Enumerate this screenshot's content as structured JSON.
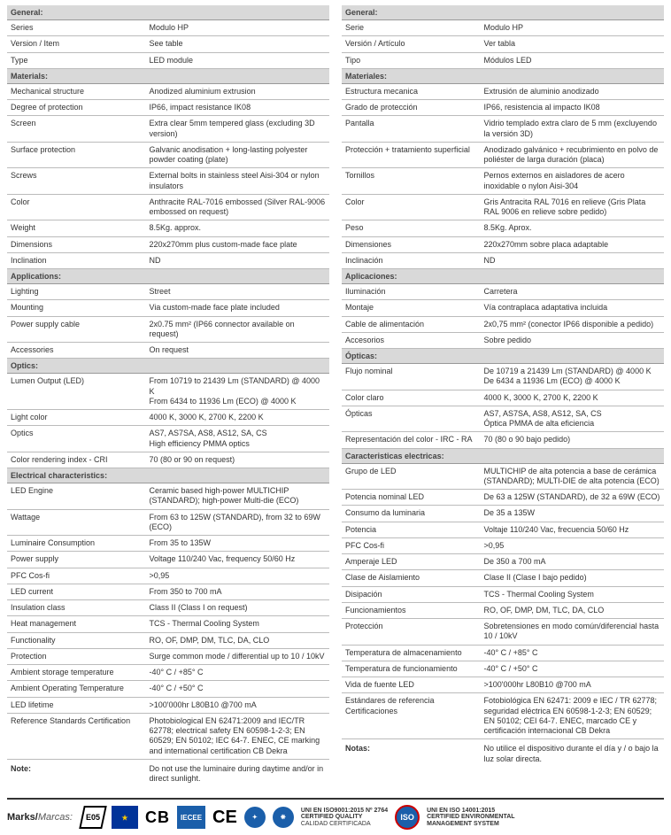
{
  "left": {
    "sections": [
      {
        "title": "General:",
        "rows": [
          {
            "label": "Series",
            "value": "Modulo HP"
          },
          {
            "label": "Version / Item",
            "value": "See table"
          },
          {
            "label": "Type",
            "value": "LED module"
          }
        ]
      },
      {
        "title": "Materials:",
        "rows": [
          {
            "label": "Mechanical structure",
            "value": "Anodized aluminium extrusion"
          },
          {
            "label": "Degree of protection",
            "value": "IP66, impact resistance IK08"
          },
          {
            "label": "Screen",
            "value": "Extra clear 5mm tempered glass (excluding 3D version)"
          },
          {
            "label": "Surface protection",
            "value": "Galvanic anodisation + long-lasting polyester powder coating (plate)"
          },
          {
            "label": "Screws",
            "value": "External bolts in stainless steel Aisi-304 or nylon insulators"
          },
          {
            "label": "Color",
            "value": "Anthracite RAL-7016 embossed (Silver RAL-9006 embossed on request)"
          },
          {
            "label": "Weight",
            "value": "8.5Kg. approx."
          },
          {
            "label": "Dimensions",
            "value": "220x270mm plus custom-made face plate"
          },
          {
            "label": "Inclination",
            "value": "ND"
          }
        ]
      },
      {
        "title": "Applications:",
        "rows": [
          {
            "label": "Lighting",
            "value": "Street"
          },
          {
            "label": "Mounting",
            "value": "Via custom-made face plate included"
          },
          {
            "label": "Power supply cable",
            "value": "2x0.75 mm² (IP66 connector available on request)"
          },
          {
            "label": "Accessories",
            "value": "On request"
          }
        ]
      },
      {
        "title": "Optics:",
        "rows": [
          {
            "label": "Lumen Output (LED)",
            "value": "From 10719 to 21439 Lm (STANDARD) @ 4000 K\nFrom 6434 to 11936 Lm (ECO) @ 4000 K"
          },
          {
            "label": "Light color",
            "value": "4000 K, 3000 K, 2700 K, 2200 K"
          },
          {
            "label": "Optics",
            "value": "AS7, AS7SA, AS8, AS12, SA, CS\nHigh efficiency PMMA optics"
          },
          {
            "label": "Color rendering index - CRI",
            "value": "70 (80 or 90 on request)"
          }
        ]
      },
      {
        "title": "Electrical characteristics:",
        "rows": [
          {
            "label": "LED Engine",
            "value": "Ceramic based high-power MULTICHIP (STANDARD); high-power Multi-die (ECO)"
          },
          {
            "label": "Wattage",
            "value": "From 63 to 125W (STANDARD), from 32 to 69W (ECO)"
          },
          {
            "label": "Luminaire Consumption",
            "value": "From 35 to 135W"
          },
          {
            "label": "Power supply",
            "value": "Voltage 110/240 Vac, frequency 50/60 Hz"
          },
          {
            "label": "PFC Cos-fi",
            "value": ">0,95"
          },
          {
            "label": "LED current",
            "value": "From 350 to 700 mA"
          },
          {
            "label": "Insulation class",
            "value": "Class II (Class I on request)"
          },
          {
            "label": "Heat management",
            "value": "TCS - Thermal Cooling System"
          },
          {
            "label": "Functionality",
            "value": "RO, OF, DMP, DM, TLC, DA, CLO"
          },
          {
            "label": "Protection",
            "value": "Surge common mode / differential up to 10 / 10kV"
          },
          {
            "label": "Ambient storage temperature",
            "value": "-40° C / +85° C"
          },
          {
            "label": "Ambient Operating Temperature",
            "value": "-40° C / +50° C"
          },
          {
            "label": "LED lifetime",
            "value": ">100'000hr L80B10 @700 mA"
          },
          {
            "label": "Reference Standards Certification",
            "value": "Photobiological EN 62471:2009 and IEC/TR 62778; electrical safety EN 60598-1-2-3; EN 60529; EN 50102; IEC 64-7. ENEC, CE marking and international certification CB Dekra"
          }
        ]
      }
    ],
    "note": {
      "label": "Note:",
      "value": "Do not use the luminaire during daytime and/or in direct sunlight."
    }
  },
  "right": {
    "sections": [
      {
        "title": "General:",
        "rows": [
          {
            "label": "Serie",
            "value": "Modulo HP"
          },
          {
            "label": "Versión / Artículo",
            "value": "Ver tabla"
          },
          {
            "label": "Tipo",
            "value": "Módulos LED"
          }
        ]
      },
      {
        "title": "Materiales:",
        "rows": [
          {
            "label": "Estructura mecanica",
            "value": "Extrusión de aluminio anodizado"
          },
          {
            "label": "Grado de protección",
            "value": "IP66, resistencia al impacto IK08"
          },
          {
            "label": "Pantalla",
            "value": "Vidrio templado extra claro de 5 mm (excluyendo la versión 3D)"
          },
          {
            "label": "Protección + tratamiento superficial",
            "value": "Anodizado galvánico + recubrimiento en polvo de poliéster de larga duración (placa)"
          },
          {
            "label": "Tornillos",
            "value": "Pernos externos en aisladores de acero inoxidable o nylon Aisi-304"
          },
          {
            "label": "Color",
            "value": "Gris Antracita RAL 7016 en relieve (Gris Plata RAL 9006 en relieve sobre pedido)"
          },
          {
            "label": "Peso",
            "value": "8.5Kg. Aprox."
          },
          {
            "label": "Dimensiones",
            "value": "220x270mm sobre placa adaptable"
          },
          {
            "label": "Inclinación",
            "value": "ND"
          }
        ]
      },
      {
        "title": "Aplicaciones:",
        "rows": [
          {
            "label": "Iluminación",
            "value": "Carretera"
          },
          {
            "label": "Montaje",
            "value": "Vía contraplaca adaptativa incluida"
          },
          {
            "label": "Cable de alimentación",
            "value": "2x0,75 mm² (conector IP66 disponible a pedido)"
          },
          {
            "label": "Accesorios",
            "value": "Sobre pedido"
          }
        ]
      },
      {
        "title": "Ópticas:",
        "rows": [
          {
            "label": "Flujo nominal",
            "value": "De 10719 a 21439 Lm (STANDARD) @ 4000 K\nDe 6434 a 11936 Lm (ECO) @ 4000 K"
          },
          {
            "label": "Color claro",
            "value": "4000 K, 3000 K, 2700 K, 2200 K"
          },
          {
            "label": "Ópticas",
            "value": "AS7, AS7SA, AS8, AS12, SA, CS\nÓptica PMMA de alta eficiencia"
          },
          {
            "label": "Representación del color - IRC - RA",
            "value": "70 (80 o 90 bajo pedido)"
          }
        ]
      },
      {
        "title": "Caracteristicas electricas:",
        "rows": [
          {
            "label": "Grupo de LED",
            "value": "MULTICHIP de alta potencia a base de cerámica (STANDARD); MULTI-DIE de alta potencia (ECO)"
          },
          {
            "label": "Potencia nominal LED",
            "value": "De 63 a 125W (STANDARD), de 32 a 69W (ECO)"
          },
          {
            "label": "Consumo da luminaria",
            "value": "De 35 a 135W"
          },
          {
            "label": "Potencia",
            "value": "Voltaje 110/240 Vac, frecuencia 50/60 Hz"
          },
          {
            "label": "PFC Cos-fi",
            "value": ">0,95"
          },
          {
            "label": "Amperaje LED",
            "value": "De 350 a 700 mA"
          },
          {
            "label": "Clase de Aislamiento",
            "value": "Clase II (Clase I bajo pedido)"
          },
          {
            "label": "Disipación",
            "value": "TCS - Thermal Cooling System"
          },
          {
            "label": "Funcionamientos",
            "value": "RO, OF, DMP, DM, TLC, DA, CLO"
          },
          {
            "label": "Protección",
            "value": "Sobretensiones en modo común/diferencial hasta 10 / 10kV"
          },
          {
            "label": "Temperatura de almacenamiento",
            "value": "-40° C / +85° C"
          },
          {
            "label": "Temperatura de funcionamiento",
            "value": "-40° C / +50° C"
          },
          {
            "label": "Vida de fuente LED",
            "value": ">100'000hr L80B10 @700 mA"
          },
          {
            "label": "Estándares de referencia Certificaciones",
            "value": "Fotobiológica EN 62471: 2009 e IEC / TR 62778; seguridad eléctrica EN 60598-1-2-3; EN 60529; EN 50102; CEI 64-7. ENEC, marcado CE y certificación internacional CB Dekra"
          }
        ]
      }
    ],
    "note": {
      "label": "Notas:",
      "value": "No utilice el dispositivo durante el día y / o bajo la luz solar directa."
    }
  },
  "footer": {
    "marks_label": "Marks/",
    "marks_label_it": "Marcas:",
    "enec": "05",
    "eu_stars": "★",
    "cb": "CB",
    "iecee": "IECEE",
    "ce": "CE",
    "iso_text": "ISO",
    "cert1_line1": "UNI EN ISO9001:2015 Nº 2764",
    "cert1_line2": "CERTIFIED QUALITY",
    "cert1_line3": "CALIDAD CERTIFICADA",
    "cert2_line1": "UNI EN ISO 14001:2015",
    "cert2_line2": "CERTIFIED ENVIRONMENTAL",
    "cert2_line3": "MANAGEMENT SYSTEM"
  }
}
